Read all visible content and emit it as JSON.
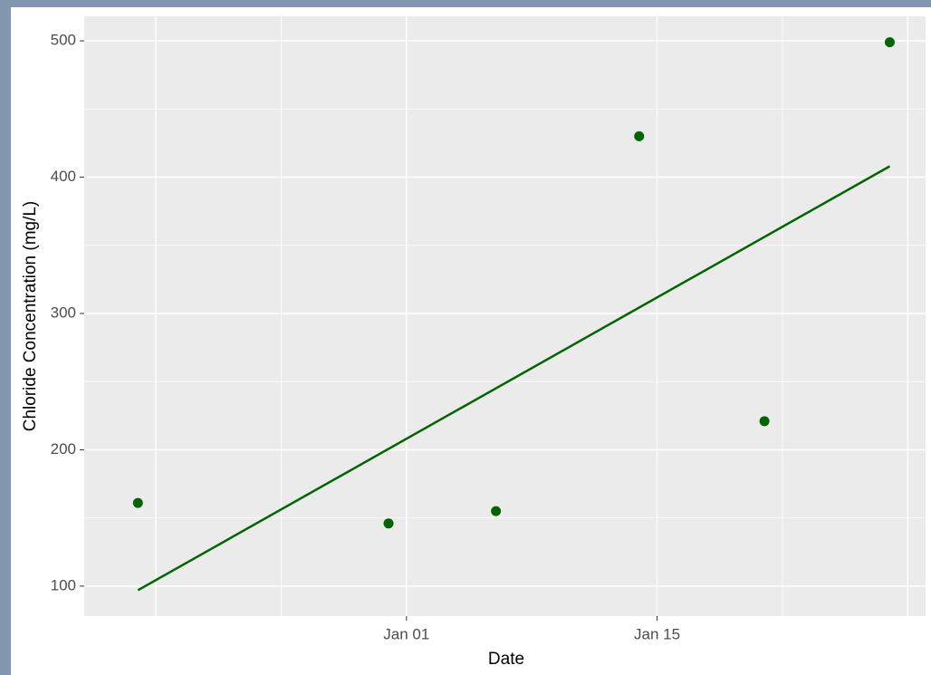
{
  "chart_data": {
    "type": "scatter",
    "x_label": "Date",
    "y_label": "Chloride Concentration (mg/L)",
    "series": [
      {
        "type": "scatter",
        "color": "#006400",
        "x": [
          "Dec 17",
          "Dec 31",
          "Jan 06",
          "Jan 14",
          "Jan 21",
          "Jan 28"
        ],
        "values": [
          161,
          146,
          155,
          430,
          221,
          499
        ]
      },
      {
        "type": "line",
        "color": "#006400",
        "x": [
          "Dec 17",
          "Jan 28"
        ],
        "values": [
          97,
          408
        ]
      }
    ],
    "xlim": [
      "Dec 14",
      "Jan 30"
    ],
    "xticks": [
      "Jan 01",
      "Jan 15"
    ],
    "ylim": [
      78,
      518
    ],
    "yticks": [
      100,
      200,
      300,
      400,
      500
    ],
    "grid": true
  }
}
